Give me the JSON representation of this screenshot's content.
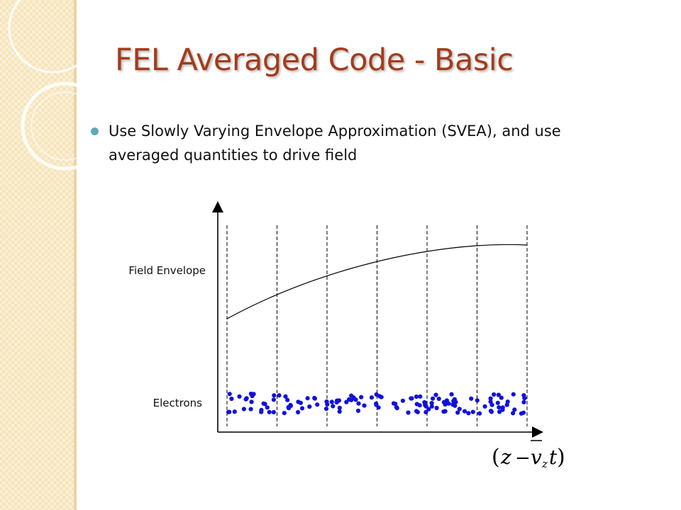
{
  "slide": {
    "title": "FEL Averaged Code - Basic",
    "bullet": "Use Slowly Varying Envelope Approximation (SVEA), and use averaged quantities to drive field"
  },
  "diagram": {
    "labels": {
      "field_envelope": "Field Envelope",
      "electrons": "Electrons"
    },
    "x_axis_formula": {
      "open_paren": "(",
      "z": "z",
      "minus": "−",
      "v": "v",
      "subscript": "z",
      "t": "t",
      "close_paren": ")"
    },
    "slice_count": 6,
    "colors": {
      "title": "#a33c1c",
      "bullet": "#5da9bf",
      "electrons": "#1111dd",
      "lines": "#000000",
      "panel": "#f6e4b8"
    }
  }
}
